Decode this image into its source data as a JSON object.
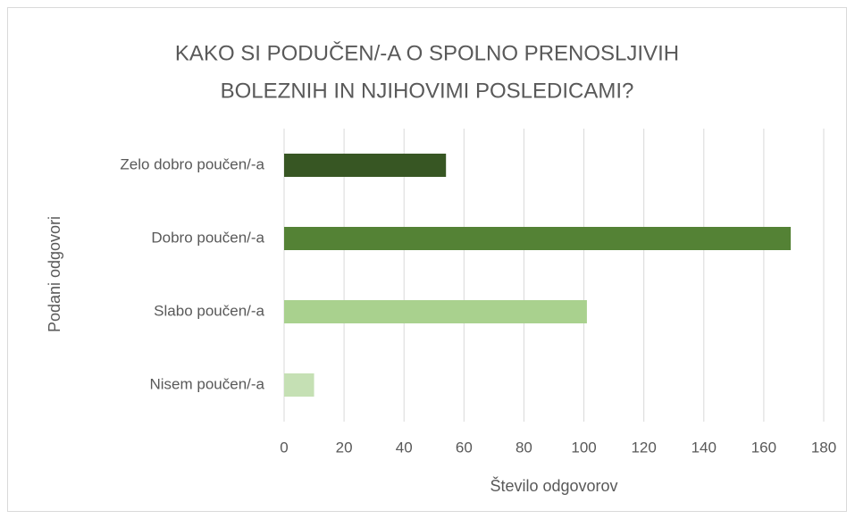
{
  "chart_data": {
    "type": "bar",
    "orientation": "horizontal",
    "title": [
      "KAKO SI PODUČEN/-A O SPOLNO PRENOSLJIVIH",
      "BOLEZNIH IN NJIHOVIMI POSLEDICAMI?"
    ],
    "x_label": "Število odgovorov",
    "y_label": "Podani odgovori",
    "categories": [
      "Zelo dobro poučen/-a",
      "Dobro poučen/-a",
      "Slabo poučen/-a",
      "Nisem poučen/-a"
    ],
    "values": [
      54,
      169,
      101,
      10
    ],
    "colors": [
      "#375623",
      "#548235",
      "#a9d18e",
      "#c5e0b4"
    ],
    "xlim": [
      0,
      180
    ],
    "xticks": [
      0,
      20,
      40,
      60,
      80,
      100,
      120,
      140,
      160,
      180
    ],
    "grid": true
  }
}
